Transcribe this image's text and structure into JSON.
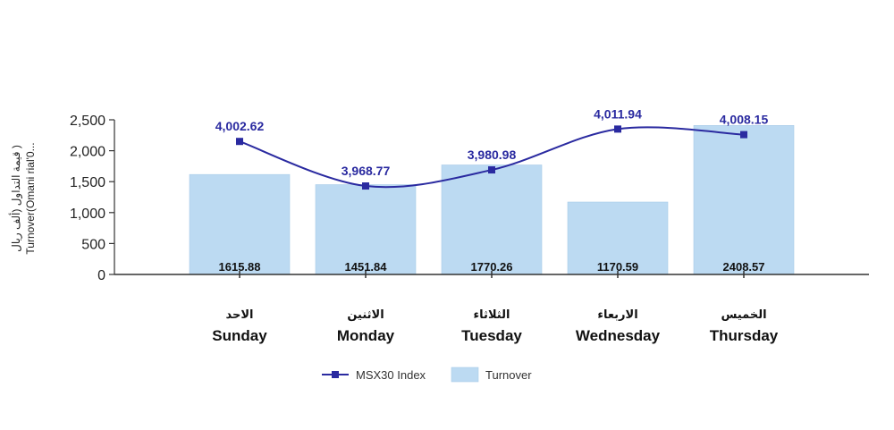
{
  "chart_data": {
    "type": "bar",
    "categories": [
      {
        "en": "Sunday",
        "ar": "الاحد"
      },
      {
        "en": "Monday",
        "ar": "الاثنين"
      },
      {
        "en": "Tuesday",
        "ar": "الثلاثاء"
      },
      {
        "en": "Wednesday",
        "ar": "الاربعاء"
      },
      {
        "en": "Thursday",
        "ar": "الخميس"
      }
    ],
    "series": [
      {
        "name": "Turnover",
        "kind": "bar",
        "color": "#bcdaf2",
        "values": [
          1615.88,
          1451.84,
          1770.26,
          1170.59,
          2408.57
        ],
        "labels": [
          "1615.88",
          "1451.84",
          "1770.26",
          "1170.59",
          "2408.57"
        ]
      },
      {
        "name": "MSX30 Index",
        "kind": "line",
        "color": "#2a2aa0",
        "values": [
          4002.62,
          3968.77,
          3980.98,
          4011.94,
          4008.15
        ],
        "labels": [
          "4,002.62",
          "3,968.77",
          "3,980.98",
          "4,011.94",
          "4,008.15"
        ],
        "plotted_on_left_axis": [
          2150,
          1430,
          1690,
          2350,
          2260
        ]
      }
    ],
    "y_axis": {
      "label_line1": "( قيمة التداول (ألف ريال",
      "label_line2": "Turnover(Omani rial'0...",
      "ylim": [
        0,
        2500
      ],
      "ticks": [
        0,
        500,
        1000,
        1500,
        2000,
        2500
      ],
      "tick_labels": [
        "0",
        "500",
        "1,000",
        "1,500",
        "2,000",
        "2,500"
      ]
    },
    "legend": {
      "position": "bottom-center",
      "items": [
        {
          "name": "MSX30 Index",
          "marker": "line-square"
        },
        {
          "name": "Turnover",
          "marker": "box"
        }
      ]
    }
  }
}
